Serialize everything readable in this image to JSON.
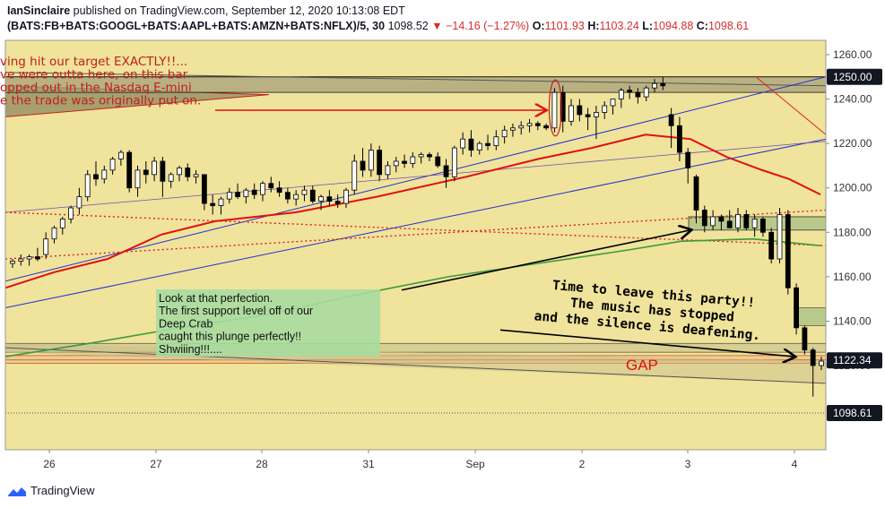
{
  "header": {
    "author": "IanSinclaire",
    "published_text": "published on TradingView.com, September 12, 2020 10:13:08 EDT",
    "symbol": "(BATS:FB+BATS:GOOGL+BATS:AAPL+BATS:AMZN+BATS:NFLX)/5, 30",
    "last": "1098.52",
    "change_arrow": "▼",
    "change": "−14.16 (−1.27%)",
    "o_label": "O:",
    "o": "1101.93",
    "h_label": "H:",
    "h": "1103.24",
    "l_label": "L:",
    "l": "1094.88",
    "c_label": "C:",
    "c": "1098.61"
  },
  "footer": {
    "brand": "TradingView",
    "logo": "tradingview-logo-icon"
  },
  "colors": {
    "background": "#f0e39c",
    "ma_red": "#e01010",
    "ma_green": "#3a9a3a",
    "trend_blue": "#2030d0",
    "candle_up": "#ffffff",
    "candle_down": "#000000",
    "box_dark": "#8a8a6a",
    "annotation_red": "#c0201c",
    "note_box": "#a9dca0"
  },
  "chart_data": {
    "type": "candlestick",
    "ylim": [
      1080,
      1265
    ],
    "y_ticks": [
      1260,
      1240,
      1220,
      1200,
      1180,
      1160,
      1140,
      1120
    ],
    "x_labels": [
      "26",
      "27",
      "28",
      "31",
      "Sep",
      "2",
      "3",
      "4"
    ],
    "price_badges": [
      {
        "label": "1250.00",
        "value": 1250.0,
        "style": "dark"
      },
      {
        "label": "1122.34",
        "value": 1122.34,
        "style": "dark"
      },
      {
        "label": "1098.61",
        "value": 1098.61,
        "style": "dark"
      }
    ],
    "candles": [
      [
        1166,
        1168,
        1164,
        1167
      ],
      [
        1167,
        1170,
        1165,
        1168
      ],
      [
        1168,
        1170,
        1165,
        1169
      ],
      [
        1169,
        1173,
        1167,
        1168
      ],
      [
        1170,
        1180,
        1168,
        1177
      ],
      [
        1177,
        1183,
        1175,
        1182
      ],
      [
        1182,
        1187,
        1179,
        1186
      ],
      [
        1186,
        1192,
        1184,
        1191
      ],
      [
        1191,
        1200,
        1188,
        1196
      ],
      [
        1196,
        1208,
        1194,
        1206
      ],
      [
        1206,
        1212,
        1201,
        1204
      ],
      [
        1204,
        1210,
        1202,
        1208
      ],
      [
        1208,
        1214,
        1206,
        1213
      ],
      [
        1213,
        1217,
        1210,
        1216
      ],
      [
        1216,
        1217,
        1198,
        1200
      ],
      [
        1200,
        1210,
        1196,
        1208
      ],
      [
        1208,
        1212,
        1202,
        1206
      ],
      [
        1206,
        1214,
        1203,
        1212
      ],
      [
        1212,
        1214,
        1196,
        1203
      ],
      [
        1203,
        1207,
        1200,
        1206
      ],
      [
        1206,
        1210,
        1203,
        1209
      ],
      [
        1209,
        1211,
        1203,
        1205
      ],
      [
        1205,
        1208,
        1202,
        1206
      ],
      [
        1206,
        1206,
        1190,
        1193
      ],
      [
        1193,
        1197,
        1188,
        1192
      ],
      [
        1192,
        1196,
        1188,
        1195
      ],
      [
        1195,
        1200,
        1193,
        1198
      ],
      [
        1198,
        1202,
        1195,
        1196
      ],
      [
        1196,
        1200,
        1193,
        1199
      ],
      [
        1199,
        1202,
        1195,
        1197
      ],
      [
        1197,
        1203,
        1194,
        1202
      ],
      [
        1202,
        1205,
        1198,
        1200
      ],
      [
        1200,
        1203,
        1196,
        1198
      ],
      [
        1198,
        1200,
        1193,
        1195
      ],
      [
        1195,
        1199,
        1192,
        1197
      ],
      [
        1197,
        1201,
        1194,
        1199
      ],
      [
        1199,
        1201,
        1193,
        1194
      ],
      [
        1194,
        1197,
        1190,
        1196
      ],
      [
        1196,
        1199,
        1192,
        1194
      ],
      [
        1194,
        1197,
        1191,
        1193
      ],
      [
        1193,
        1200,
        1191,
        1199
      ],
      [
        1199,
        1215,
        1197,
        1212
      ],
      [
        1212,
        1218,
        1205,
        1208
      ],
      [
        1208,
        1220,
        1205,
        1217
      ],
      [
        1217,
        1219,
        1203,
        1206
      ],
      [
        1206,
        1212,
        1204,
        1210
      ],
      [
        1210,
        1214,
        1207,
        1212
      ],
      [
        1212,
        1215,
        1209,
        1211
      ],
      [
        1211,
        1216,
        1209,
        1214
      ],
      [
        1214,
        1216,
        1211,
        1215
      ],
      [
        1215,
        1216,
        1212,
        1214
      ],
      [
        1214,
        1216,
        1209,
        1210
      ],
      [
        1210,
        1213,
        1200,
        1205
      ],
      [
        1205,
        1219,
        1203,
        1218
      ],
      [
        1218,
        1225,
        1215,
        1222
      ],
      [
        1222,
        1226,
        1214,
        1217
      ],
      [
        1217,
        1221,
        1215,
        1220
      ],
      [
        1220,
        1224,
        1217,
        1219
      ],
      [
        1219,
        1226,
        1217,
        1223
      ],
      [
        1223,
        1228,
        1220,
        1226
      ],
      [
        1226,
        1229,
        1223,
        1227
      ],
      [
        1227,
        1230,
        1224,
        1228
      ],
      [
        1228,
        1231,
        1225,
        1229
      ],
      [
        1229,
        1230,
        1226,
        1228
      ],
      [
        1228,
        1229,
        1226,
        1227
      ],
      [
        1227,
        1245,
        1225,
        1243
      ],
      [
        1243,
        1246,
        1225,
        1230
      ],
      [
        1230,
        1240,
        1228,
        1237
      ],
      [
        1237,
        1240,
        1230,
        1233
      ],
      [
        1233,
        1236,
        1226,
        1232
      ],
      [
        1232,
        1237,
        1222,
        1234
      ],
      [
        1234,
        1239,
        1231,
        1237
      ],
      [
        1237,
        1240,
        1233,
        1240
      ],
      [
        1240,
        1245,
        1236,
        1244
      ],
      [
        1244,
        1246,
        1240,
        1243
      ],
      [
        1243,
        1245,
        1238,
        1241
      ],
      [
        1241,
        1246,
        1239,
        1245
      ],
      [
        1245,
        1249,
        1243,
        1247
      ],
      [
        1247,
        1250,
        1244,
        1246
      ],
      [
        1233,
        1236,
        1218,
        1228
      ],
      [
        1228,
        1232,
        1212,
        1216
      ],
      [
        1216,
        1218,
        1202,
        1209
      ],
      [
        1205,
        1206,
        1184,
        1190
      ],
      [
        1190,
        1192,
        1180,
        1183
      ],
      [
        1183,
        1190,
        1181,
        1187
      ],
      [
        1187,
        1188,
        1181,
        1185
      ],
      [
        1185,
        1190,
        1182,
        1182
      ],
      [
        1182,
        1191,
        1180,
        1188
      ],
      [
        1188,
        1190,
        1181,
        1182
      ],
      [
        1182,
        1188,
        1178,
        1186
      ],
      [
        1186,
        1187,
        1178,
        1180
      ],
      [
        1180,
        1182,
        1166,
        1168
      ],
      [
        1168,
        1191,
        1166,
        1188
      ],
      [
        1188,
        1190,
        1152,
        1155
      ],
      [
        1155,
        1157,
        1134,
        1137
      ],
      [
        1137,
        1138,
        1125,
        1127
      ],
      [
        1127,
        1128,
        1106,
        1120
      ],
      [
        1120,
        1124,
        1118,
        1122
      ]
    ],
    "annotations": {
      "top_left": [
        "ving hit our target EXACTLY!!...",
        "ve were outta here, on this bar",
        "opped out in the Nasdaq E-mini",
        "e the trade was originally put on."
      ],
      "note_box": [
        "Look at that perfection.",
        "The first support level off of our",
        "Deep Crab",
        "caught this plunge perfectly!!",
        "Shwiiing!!!...."
      ],
      "party": [
        "Time to leave this party!!",
        "The music has stopped",
        "and the silence is deafening."
      ],
      "gap": "GAP"
    }
  }
}
